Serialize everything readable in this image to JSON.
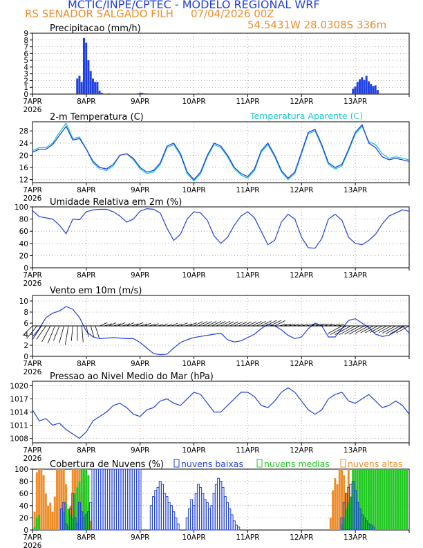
{
  "header": {
    "title": "MCTIC/INPE/CPTEC - MODELO REGIONAL WRF",
    "station": "RS SENADOR SALGADO FILH",
    "run": "07/04/2026 00Z",
    "location": "54.5431W 28.0308S 336m"
  },
  "colors": {
    "main": "#1f3fe0",
    "apparent": "#1ec8d2",
    "low_cloud": "#1f3fe0",
    "mid_cloud": "#22c822",
    "high_cloud": "#f08c28",
    "wind_barb": "#000000",
    "title_orange": "#f08c28"
  },
  "x_axis": {
    "start_label": "7APR",
    "year_label": "2026",
    "day_labels": [
      "7APR",
      "8APR",
      "9APR",
      "10APR",
      "11APR",
      "12APR",
      "13APR"
    ],
    "hours_total": 168
  },
  "panels": {
    "precip": {
      "title": "Precipitacao (mm/h)",
      "ylim": [
        0,
        9
      ],
      "yticks": [
        0,
        1,
        2,
        3,
        4,
        5,
        6,
        7,
        8,
        9
      ]
    },
    "temp": {
      "title": "2-m Temperatura (C)",
      "legend": "Temperatura Aparente (C)",
      "ylim": [
        11,
        31
      ],
      "yticks": [
        12,
        16,
        20,
        24,
        28
      ]
    },
    "rh": {
      "title": "Umidade Relativa em 2m (%)",
      "ylim": [
        0,
        100
      ],
      "yticks": [
        0,
        20,
        40,
        60,
        80,
        100
      ]
    },
    "wind": {
      "title": "Vento em 10m (m/s)",
      "ylim": [
        0,
        11
      ],
      "yticks": [
        0,
        2,
        4,
        6,
        8,
        10
      ]
    },
    "pressure": {
      "title": "Pressao ao Nivel Medio do Mar (hPa)",
      "ylim": [
        1007,
        1021
      ],
      "yticks": [
        1008,
        1011,
        1014,
        1017,
        1020
      ]
    },
    "cloud": {
      "title": "Cobertura de Nuvens (%)",
      "legend_low": "nuvens baixas",
      "legend_mid": "nuvens medias",
      "legend_high": "nuvens altas",
      "ylim": [
        0,
        100
      ],
      "yticks": [
        0,
        20,
        40,
        60,
        80,
        100
      ]
    }
  },
  "chart_data": [
    {
      "type": "bar",
      "title": "Precipitacao (mm/h)",
      "x_unit": "hours since 7APR 00Z",
      "x": [
        20,
        21,
        22,
        23,
        24,
        25,
        26,
        27,
        28,
        29,
        30,
        31,
        34,
        47,
        48,
        49,
        50,
        51,
        73,
        74,
        75,
        143,
        144,
        145,
        146,
        147,
        148,
        149,
        150,
        151,
        152,
        153,
        154
      ],
      "values": [
        2.3,
        2.7,
        1.8,
        8.3,
        7.6,
        5.0,
        3.4,
        2.3,
        1.8,
        1.8,
        0.5,
        0.2,
        0.1,
        0.1,
        0.2,
        0.2,
        0.1,
        0.1,
        0.05,
        0.1,
        0.05,
        0.8,
        1.1,
        1.8,
        2.2,
        2.5,
        2.1,
        2.7,
        1.9,
        1.5,
        1.2,
        1.3,
        0.6
      ],
      "ylim": [
        0,
        9
      ]
    },
    {
      "type": "line",
      "title": "2-m Temperatura (C)",
      "legend": "Temperatura Aparente (C)",
      "x_unit": "hours since 7APR 00Z",
      "series": [
        {
          "name": "2-m Temperatura (C)",
          "x": [
            0,
            3,
            6,
            9,
            12,
            15,
            18,
            21,
            24,
            27,
            30,
            33,
            36,
            39,
            42,
            45,
            48,
            51,
            54,
            57,
            60,
            63,
            66,
            69,
            72,
            75,
            78,
            81,
            84,
            87,
            90,
            93,
            96,
            99,
            102,
            105,
            108,
            111,
            114,
            117,
            120,
            123,
            126,
            129,
            132,
            135,
            138,
            141,
            144,
            147,
            150,
            153,
            156,
            159,
            162,
            165,
            168
          ],
          "values": [
            21.0,
            22.0,
            22.0,
            23.5,
            26.5,
            29.5,
            25.0,
            25.5,
            22.0,
            18.0,
            16.0,
            15.5,
            17.0,
            20.0,
            20.5,
            19.0,
            16.0,
            14.5,
            15.0,
            17.5,
            23.0,
            24.0,
            20.5,
            14.5,
            12.0,
            14.5,
            20.0,
            24.0,
            23.0,
            20.0,
            16.0,
            14.0,
            13.0,
            15.5,
            21.5,
            24.0,
            20.0,
            15.0,
            12.5,
            14.5,
            21.0,
            27.5,
            28.5,
            23.5,
            17.5,
            16.0,
            17.0,
            22.0,
            27.5,
            30.0,
            24.0,
            22.5,
            19.5,
            18.5,
            19.0,
            18.5,
            18.0
          ]
        },
        {
          "name": "Temperatura Aparente (C)",
          "x": [
            0,
            3,
            6,
            9,
            12,
            15,
            18,
            21,
            24,
            27,
            30,
            33,
            36,
            39,
            42,
            45,
            48,
            51,
            54,
            57,
            60,
            63,
            66,
            69,
            72,
            75,
            78,
            81,
            84,
            87,
            90,
            93,
            96,
            99,
            102,
            105,
            108,
            111,
            114,
            117,
            120,
            123,
            126,
            129,
            132,
            135,
            138,
            141,
            144,
            147,
            150,
            153,
            156,
            159,
            162,
            165,
            168
          ],
          "values": [
            21.5,
            22.5,
            22.5,
            24.0,
            27.5,
            30.5,
            25.5,
            26.0,
            22.0,
            17.5,
            15.5,
            15.0,
            16.5,
            20.0,
            20.5,
            18.5,
            15.5,
            14.0,
            14.5,
            17.0,
            22.5,
            23.5,
            20.0,
            14.0,
            11.5,
            14.0,
            19.5,
            23.5,
            22.5,
            19.5,
            15.5,
            13.5,
            12.5,
            15.0,
            21.0,
            23.5,
            19.5,
            14.5,
            12.0,
            14.0,
            20.5,
            27.0,
            28.0,
            23.0,
            17.0,
            15.5,
            16.5,
            21.5,
            27.0,
            29.5,
            24.5,
            23.5,
            20.5,
            19.0,
            19.5,
            19.0,
            18.5
          ]
        }
      ],
      "ylim": [
        11,
        31
      ]
    },
    {
      "type": "line",
      "title": "Umidade Relativa em 2m (%)",
      "x_unit": "hours since 7APR 00Z",
      "x": [
        0,
        3,
        6,
        9,
        12,
        15,
        18,
        21,
        24,
        27,
        30,
        33,
        36,
        39,
        42,
        45,
        48,
        51,
        54,
        57,
        60,
        63,
        66,
        69,
        72,
        75,
        78,
        81,
        84,
        87,
        90,
        93,
        96,
        99,
        102,
        105,
        108,
        111,
        114,
        117,
        120,
        123,
        126,
        129,
        132,
        135,
        138,
        141,
        144,
        147,
        150,
        153,
        156,
        159,
        162,
        165,
        168
      ],
      "values": [
        94,
        84,
        82,
        80,
        70,
        56,
        80,
        79,
        92,
        95,
        96,
        96,
        92,
        85,
        75,
        80,
        93,
        97,
        96,
        90,
        65,
        45,
        55,
        80,
        92,
        90,
        78,
        52,
        40,
        50,
        70,
        85,
        92,
        82,
        60,
        38,
        45,
        75,
        88,
        80,
        50,
        33,
        32,
        48,
        80,
        88,
        78,
        50,
        40,
        38,
        45,
        55,
        72,
        85,
        90,
        95,
        93
      ],
      "ylim": [
        0,
        100
      ]
    },
    {
      "type": "line",
      "title": "Vento em 10m (m/s)",
      "x_unit": "hours since 7APR 00Z",
      "x": [
        0,
        3,
        6,
        9,
        12,
        15,
        18,
        21,
        24,
        27,
        30,
        33,
        36,
        39,
        42,
        45,
        48,
        51,
        54,
        57,
        60,
        63,
        66,
        69,
        72,
        75,
        78,
        81,
        84,
        87,
        90,
        93,
        96,
        99,
        102,
        105,
        108,
        111,
        114,
        117,
        120,
        123,
        126,
        129,
        132,
        135,
        138,
        141,
        144,
        147,
        150,
        153,
        156,
        159,
        162,
        165,
        168
      ],
      "values": [
        3.5,
        5.0,
        7.0,
        7.8,
        8.2,
        9.0,
        8.5,
        7.0,
        4.5,
        3.5,
        3.2,
        3.3,
        3.4,
        3.3,
        3.2,
        3.2,
        2.5,
        1.5,
        0.5,
        0.3,
        0.4,
        1.5,
        2.5,
        3.0,
        3.4,
        3.6,
        3.8,
        4.0,
        4.2,
        3.0,
        2.6,
        2.8,
        3.4,
        4.0,
        5.0,
        5.8,
        5.5,
        4.8,
        3.8,
        3.2,
        3.5,
        5.0,
        6.0,
        5.5,
        3.5,
        3.5,
        5.0,
        6.5,
        6.8,
        6.0,
        5.2,
        4.0,
        3.6,
        3.8,
        4.5,
        5.5,
        4.2
      ],
      "ylim": [
        0,
        11
      ]
    },
    {
      "type": "line",
      "title": "Pressao ao Nivel Medio do Mar (hPa)",
      "x_unit": "hours since 7APR 00Z",
      "x": [
        0,
        3,
        6,
        9,
        12,
        15,
        18,
        21,
        24,
        27,
        30,
        33,
        36,
        39,
        42,
        45,
        48,
        51,
        54,
        57,
        60,
        63,
        66,
        69,
        72,
        75,
        78,
        81,
        84,
        87,
        90,
        93,
        96,
        99,
        102,
        105,
        108,
        111,
        114,
        117,
        120,
        123,
        126,
        129,
        132,
        135,
        138,
        141,
        144,
        147,
        150,
        153,
        156,
        159,
        162,
        165,
        168
      ],
      "values": [
        1014.5,
        1012.0,
        1012.5,
        1011.0,
        1011.5,
        1010.0,
        1009.0,
        1008.0,
        1009.5,
        1012.0,
        1013.0,
        1014.0,
        1015.5,
        1016.0,
        1015.0,
        1013.5,
        1013.0,
        1014.5,
        1015.0,
        1016.5,
        1017.0,
        1016.0,
        1015.5,
        1017.0,
        1018.5,
        1018.0,
        1016.0,
        1014.0,
        1014.0,
        1015.5,
        1017.0,
        1018.5,
        1018.5,
        1017.5,
        1015.5,
        1015.0,
        1016.5,
        1018.5,
        1019.5,
        1018.5,
        1016.5,
        1014.5,
        1013.5,
        1014.5,
        1017.0,
        1018.0,
        1018.5,
        1016.5,
        1016.0,
        1017.0,
        1018.0,
        1016.5,
        1015.0,
        1015.5,
        1016.5,
        1015.5,
        1013.5
      ],
      "ylim": [
        1007,
        1021
      ]
    },
    {
      "type": "bar",
      "title": "Cobertura de Nuvens (%)",
      "x_unit": "hours since 7APR 00Z",
      "series": [
        {
          "name": "nuvens baixas",
          "x": [
            13,
            14,
            15,
            16,
            17,
            18,
            19,
            20,
            21,
            22,
            23,
            24,
            25,
            26,
            27,
            28,
            29,
            30,
            31,
            32,
            33,
            34,
            35,
            36,
            37,
            38,
            39,
            40,
            41,
            42,
            43,
            44,
            45,
            46,
            47,
            48,
            53,
            54,
            55,
            56,
            57,
            58,
            59,
            60,
            61,
            62,
            63,
            64,
            65,
            69,
            70,
            71,
            72,
            73,
            74,
            75,
            76,
            77,
            78,
            79,
            80,
            81,
            82,
            83,
            84,
            85,
            86,
            87,
            88,
            89,
            90,
            91,
            92,
            138,
            139,
            140,
            141,
            142,
            143,
            144,
            145,
            146,
            147,
            148,
            149,
            150,
            151,
            152
          ],
          "values": [
            35,
            45,
            10,
            5,
            35,
            60,
            20,
            10,
            45,
            30,
            20,
            25,
            30,
            45,
            100,
            100,
            100,
            100,
            100,
            100,
            100,
            100,
            100,
            100,
            100,
            100,
            100,
            100,
            100,
            100,
            100,
            100,
            100,
            100,
            100,
            100,
            40,
            55,
            65,
            70,
            80,
            75,
            60,
            55,
            45,
            40,
            30,
            20,
            10,
            20,
            35,
            50,
            40,
            60,
            75,
            70,
            60,
            50,
            45,
            35,
            40,
            60,
            75,
            85,
            80,
            70,
            55,
            45,
            35,
            25,
            15,
            8,
            5,
            20,
            45,
            60,
            70,
            75,
            80,
            65,
            45,
            35,
            25,
            20,
            15,
            10,
            8,
            5
          ]
        },
        {
          "name": "nuvens medias",
          "x": [
            1,
            2,
            3,
            14,
            15,
            16,
            17,
            18,
            19,
            20,
            21,
            22,
            23,
            24,
            25,
            138,
            139,
            140,
            141,
            142,
            143,
            144,
            145,
            146,
            147,
            148,
            149,
            150,
            151,
            152,
            153,
            154,
            155,
            156,
            157,
            158,
            159,
            160,
            161,
            162,
            163,
            164,
            165,
            166,
            167
          ],
          "values": [
            5,
            20,
            25,
            30,
            45,
            35,
            25,
            20,
            60,
            70,
            80,
            100,
            100,
            100,
            90,
            10,
            20,
            35,
            45,
            55,
            100,
            100,
            100,
            100,
            100,
            100,
            100,
            100,
            100,
            100,
            100,
            100,
            100,
            100,
            100,
            100,
            100,
            100,
            100,
            100,
            100,
            100,
            100,
            100,
            100
          ]
        },
        {
          "name": "nuvens altas",
          "x": [
            1,
            2,
            3,
            4,
            5,
            6,
            7,
            8,
            9,
            10,
            11,
            12,
            13,
            14,
            15,
            16,
            17,
            18,
            19,
            20,
            21,
            22,
            23,
            24,
            25,
            26,
            133,
            134,
            135,
            136,
            137,
            138,
            139,
            140,
            141,
            142,
            143
          ],
          "values": [
            30,
            95,
            100,
            100,
            90,
            60,
            40,
            45,
            30,
            55,
            100,
            100,
            100,
            100,
            75,
            30,
            40,
            100,
            100,
            100,
            100,
            60,
            80,
            40,
            30,
            15,
            20,
            65,
            85,
            75,
            100,
            100,
            90,
            60,
            100,
            50,
            30
          ]
        }
      ],
      "ylim": [
        0,
        100
      ]
    }
  ]
}
